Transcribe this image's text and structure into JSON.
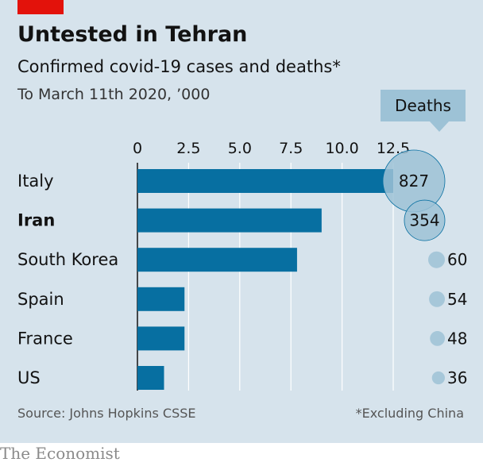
{
  "brand": "The Economist",
  "chart_data": {
    "type": "bar",
    "title": "Untested in Tehran",
    "subtitle": "Confirmed covid-19 cases and deaths*",
    "unit_note": "To March 11th 2020, ’000",
    "categories": [
      "Italy",
      "Iran",
      "South Korea",
      "Spain",
      "France",
      "US"
    ],
    "highlight_category": "Iran",
    "series": [
      {
        "name": "",
        "values": [
          12.5,
          9.0,
          7.8,
          2.3,
          2.3,
          1.3
        ]
      },
      {
        "name": "Deaths",
        "values": [
          827,
          354,
          60,
          54,
          48,
          36
        ]
      }
    ],
    "xticks": [
      "0",
      "2.5",
      "5.0",
      "7.5",
      "10.0",
      "12.5"
    ],
    "xlim": [
      0,
      12.5
    ],
    "grid": true,
    "source": "Source: Johns Hopkins CSSE",
    "footnote": "*Excluding China",
    "colors": {
      "bar": "#076fa1",
      "bubble": "#9dc2d6",
      "bubble_outline": "#076fa1",
      "grid": "#ffffff",
      "text": "#121212"
    }
  }
}
